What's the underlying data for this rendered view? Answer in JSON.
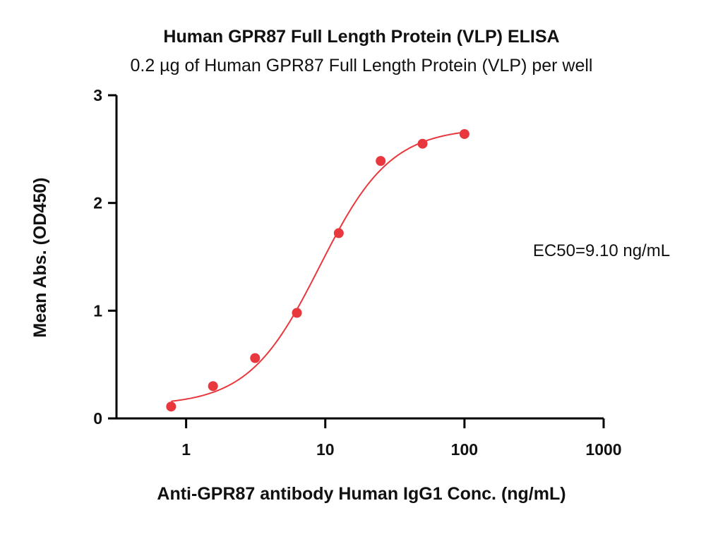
{
  "chart_data": {
    "type": "scatter",
    "title": "Human GPR87 Full Length Protein (VLP) ELISA",
    "subtitle": "0.2 µg of Human GPR87 Full Length Protein (VLP) per well",
    "xlabel": "Anti-GPR87 antibody Human IgG1 Conc. (ng/mL)",
    "ylabel": "Mean Abs. (OD450)",
    "x_scale": "log",
    "xlim": [
      0.316,
      1000
    ],
    "ylim": [
      0,
      3
    ],
    "x_ticks": [
      1,
      10,
      100,
      1000
    ],
    "x_tick_labels": [
      "1",
      "10",
      "100",
      "1000"
    ],
    "y_ticks": [
      0,
      1,
      2,
      3
    ],
    "y_tick_labels": [
      "0",
      "1",
      "2",
      "3"
    ],
    "grid": false,
    "legend": "none",
    "series": [
      {
        "x": [
          0.78,
          1.56,
          3.13,
          6.25,
          12.5,
          25,
          50,
          100
        ],
        "y": [
          0.11,
          0.3,
          0.56,
          0.98,
          1.72,
          2.39,
          2.55,
          2.64
        ],
        "fit": "4PL",
        "color": "#e8383d"
      }
    ],
    "fit_params": {
      "bottom": 0.12,
      "top": 2.7,
      "ec50": 9.1,
      "hill": 1.7
    },
    "annotations": [
      "EC50=9.10 ng/mL"
    ]
  }
}
